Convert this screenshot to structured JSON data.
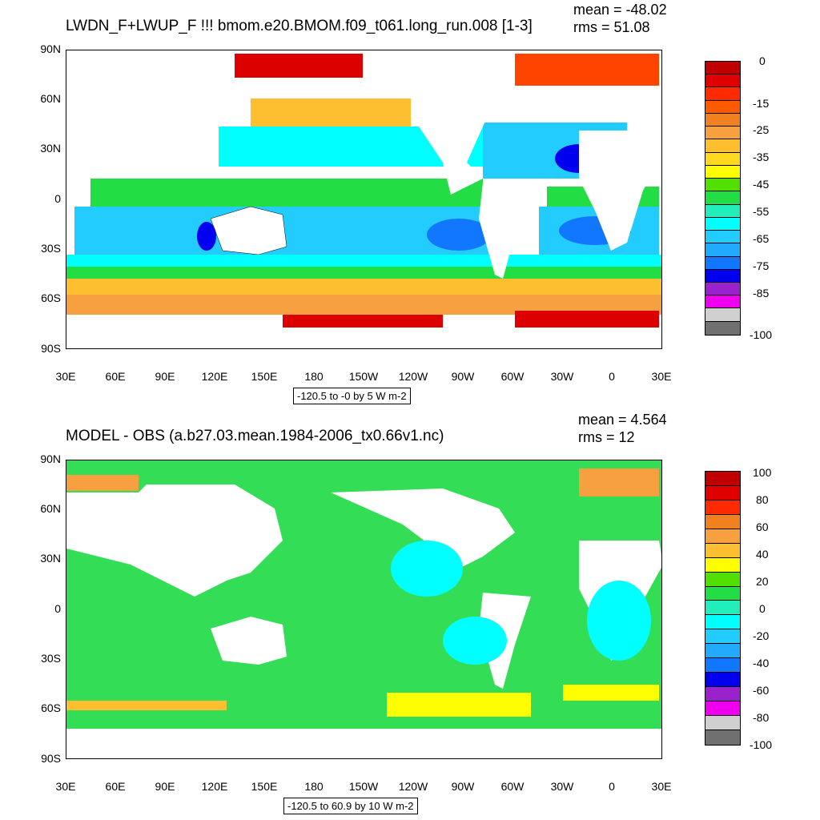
{
  "top": {
    "title": "LWDN_F+LWUP_F !!!  bmom.e20.BMOM.f09_t061.long_run.008 [1-3]",
    "mean": "mean = -48.02",
    "rms": "rms = 51.08",
    "contour_info": "-120.5 to -0 by 5 W m-2",
    "colorbar_labels": [
      "0",
      "-15",
      "-25",
      "-35",
      "-45",
      "-55",
      "-65",
      "-75",
      "-85",
      "-100"
    ],
    "colors": [
      "#c00000",
      "#e00000",
      "#ff2a00",
      "#ff5a00",
      "#f08020",
      "#f7a040",
      "#fdbf30",
      "#ffd820",
      "#ffff00",
      "#52e000",
      "#22dd44",
      "#22eebb",
      "#00ffff",
      "#22ccff",
      "#22aaff",
      "#1177ff",
      "#0000ee",
      "#9922cc",
      "#ee00ee",
      "#d0d0d0",
      "#707070"
    ]
  },
  "bottom": {
    "title": "MODEL - OBS (a.b27.03.mean.1984-2006_tx0.66v1.nc)",
    "mean": "mean = 4.564",
    "rms": "rms = 12",
    "contour_info": "-120.5 to 60.9 by 10 W m-2",
    "colorbar_labels": [
      "100",
      "80",
      "60",
      "40",
      "20",
      "0",
      "-20",
      "-40",
      "-60",
      "-80",
      "-100"
    ],
    "colors": [
      "#c00000",
      "#e00000",
      "#ff2a00",
      "#f08020",
      "#f7a040",
      "#fdbf30",
      "#ffff00",
      "#52e000",
      "#22dd44",
      "#22eebb",
      "#00ffff",
      "#22ccff",
      "#22aaff",
      "#1177ff",
      "#0000ee",
      "#9922cc",
      "#ee00ee",
      "#d0d0d0",
      "#707070"
    ]
  },
  "axes": {
    "y_labels": [
      "90N",
      "60N",
      "30N",
      "0",
      "30S",
      "60S",
      "90S"
    ],
    "x_labels": [
      "30E",
      "60E",
      "90E",
      "120E",
      "150E",
      "180",
      "150W",
      "120W",
      "90W",
      "60W",
      "30W",
      "0",
      "30E"
    ]
  },
  "map_colors": {
    "land": "#ffffff",
    "top_ocean_bg": "#33ccff",
    "bottom_ocean_bg": "#33dd55"
  }
}
